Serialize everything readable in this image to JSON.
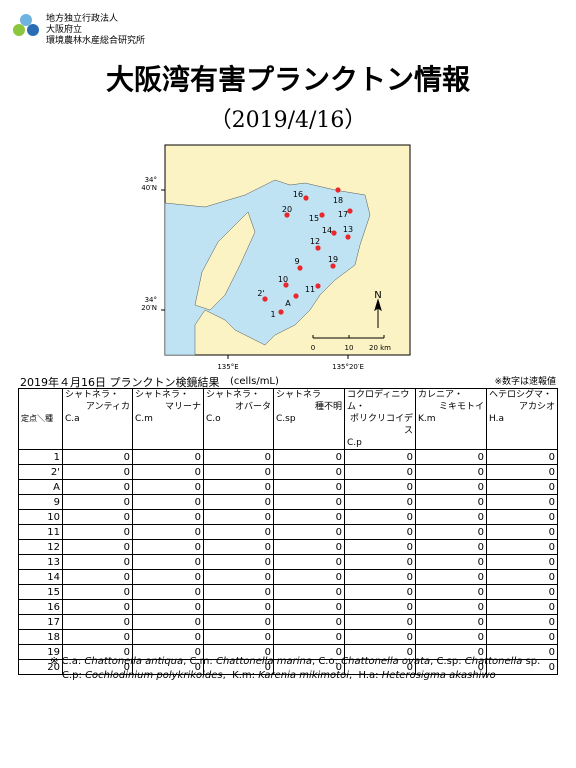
{
  "header": {
    "org": [
      "地方独立行政法人",
      "大阪府立",
      "環境農林水産総合研究所"
    ],
    "title": "大阪湾有害プランクトン情報",
    "date": "（2019/4/16）"
  },
  "map": {
    "lat_labels": [
      [
        "34°",
        "40′N"
      ],
      [
        "34°",
        "20′N"
      ]
    ],
    "lon_labels": [
      "135°E",
      "135°20′E"
    ],
    "stations": [
      "16",
      "18",
      "20",
      "15",
      "17",
      "14",
      "13",
      "12",
      "9",
      "19",
      "10",
      "2'",
      "A",
      "11",
      "1"
    ],
    "scale": [
      "0",
      "10",
      "20 km"
    ],
    "north": "N"
  },
  "table": {
    "caption": "2019年４月16日 プランクトン検鏡結果",
    "unit": "(cells/mL)",
    "note": "※数字は速報値",
    "corner": "定点＼種",
    "columns": [
      {
        "name": [
          "シャトネラ・",
          "アンティカ"
        ],
        "abbr": "C.a"
      },
      {
        "name": [
          "シャトネラ・",
          "マリーナ"
        ],
        "abbr": "C.m"
      },
      {
        "name": [
          "シャトネラ・",
          "オバータ"
        ],
        "abbr": "C.o"
      },
      {
        "name": [
          "シャトネラ",
          "種不明"
        ],
        "abbr": "C.sp"
      },
      {
        "name": [
          "コクロディニウム・",
          "ポリクリコイデス"
        ],
        "abbr": "C.p"
      },
      {
        "name": [
          "カレニア・",
          "ミキモトイ"
        ],
        "abbr": "K.m"
      },
      {
        "name": [
          "ヘテロシグマ・",
          "アカシオ"
        ],
        "abbr": "H.a"
      }
    ],
    "rows": [
      [
        "1",
        0,
        0,
        0,
        0,
        0,
        0,
        0
      ],
      [
        "2'",
        0,
        0,
        0,
        0,
        0,
        0,
        0
      ],
      [
        "A",
        0,
        0,
        0,
        0,
        0,
        0,
        0
      ],
      [
        "9",
        0,
        0,
        0,
        0,
        0,
        0,
        0
      ],
      [
        "10",
        0,
        0,
        0,
        0,
        0,
        0,
        0
      ],
      [
        "11",
        0,
        0,
        0,
        0,
        0,
        0,
        0
      ],
      [
        "12",
        0,
        0,
        0,
        0,
        0,
        0,
        0
      ],
      [
        "13",
        0,
        0,
        0,
        0,
        0,
        0,
        0
      ],
      [
        "14",
        0,
        0,
        0,
        0,
        0,
        0,
        0
      ],
      [
        "15",
        0,
        0,
        0,
        0,
        0,
        0,
        0
      ],
      [
        "16",
        0,
        0,
        0,
        0,
        0,
        0,
        0
      ],
      [
        "17",
        0,
        0,
        0,
        0,
        0,
        0,
        0
      ],
      [
        "18",
        0,
        0,
        0,
        0,
        0,
        0,
        0
      ],
      [
        "19",
        0,
        0,
        0,
        0,
        0,
        0,
        0
      ],
      [
        "20",
        0,
        0,
        0,
        0,
        0,
        0,
        0
      ]
    ]
  },
  "footnote": [
    [
      "※ C.a: ",
      "Chattonella antiqua",
      ", C.m: ",
      "Chattonella marina",
      ", C.o: ",
      "Chattonella ovata",
      ", C.sp: ",
      "Chattonella",
      " sp."
    ],
    [
      "C.p: ",
      "Cochlodinium polykrikoides",
      ",  K.m: ",
      "Karenia mikimotoi",
      ",  H.a: ",
      "Heterosigma akashiwo"
    ]
  ]
}
